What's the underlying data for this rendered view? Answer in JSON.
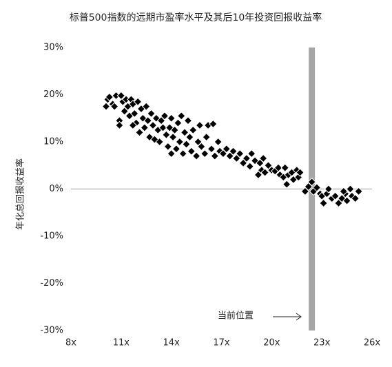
{
  "chart_data": {
    "type": "scatter",
    "title": "标普500指数的远期市盈率水平及其后10年投资回报收益率",
    "y_label": "年化总回报收益率",
    "annotation": "当前位置",
    "current_x": 22.4,
    "color": "#000000",
    "xlim": [
      8,
      26
    ],
    "xticks": [
      {
        "value": 8,
        "label": "8x"
      },
      {
        "value": 11,
        "label": "11x"
      },
      {
        "value": 14,
        "label": "14x"
      },
      {
        "value": 17,
        "label": "17x"
      },
      {
        "value": 20,
        "label": "20x"
      },
      {
        "value": 23,
        "label": "23x"
      },
      {
        "value": 26,
        "label": "26x"
      }
    ],
    "ylim": [
      -30,
      30
    ],
    "yticks": [
      {
        "value": -30,
        "label": "-30%"
      },
      {
        "value": -20,
        "label": "-20%"
      },
      {
        "value": -10,
        "label": "-10%"
      },
      {
        "value": 0,
        "label": "0%"
      },
      {
        "value": 10,
        "label": "10%"
      },
      {
        "value": 20,
        "label": "20%"
      },
      {
        "value": 30,
        "label": "30%"
      }
    ],
    "x": [
      10.1,
      10.2,
      10.3,
      10.5,
      10.7,
      10.6,
      10.9,
      10.9,
      11.0,
      11.1,
      11.2,
      11.3,
      11.4,
      11.5,
      11.6,
      11.7,
      11.8,
      11.9,
      11.7,
      12.0,
      12.1,
      12.2,
      12.3,
      12.4,
      12.5,
      12.6,
      12.7,
      12.8,
      12.9,
      13.0,
      13.1,
      13.2,
      13.3,
      13.4,
      13.5,
      13.6,
      13.7,
      13.8,
      13.9,
      14.0,
      14.0,
      14.1,
      14.2,
      14.3,
      14.4,
      14.5,
      14.6,
      14.7,
      14.8,
      14.9,
      15.0,
      15.1,
      15.2,
      15.3,
      15.5,
      15.6,
      15.7,
      15.8,
      16.0,
      16.1,
      16.2,
      16.4,
      16.5,
      16.6,
      16.8,
      16.9,
      17.1,
      17.3,
      17.5,
      17.7,
      17.9,
      18.1,
      18.3,
      18.5,
      18.7,
      18.8,
      19.0,
      19.2,
      19.3,
      19.4,
      19.5,
      19.6,
      19.8,
      20.0,
      20.2,
      20.4,
      20.5,
      20.7,
      20.8,
      20.9,
      21.0,
      21.2,
      21.3,
      21.5,
      21.6,
      21.7,
      22.0,
      22.2,
      22.4,
      22.5,
      22.7,
      22.9,
      23.0,
      23.1,
      23.3,
      23.4,
      23.6,
      23.8,
      24.0,
      24.2,
      24.4,
      24.5,
      24.7,
      24.8,
      25.0,
      25.2,
      24.3
    ],
    "values": [
      17.5,
      19,
      19.5,
      18,
      19.8,
      17.5,
      14.5,
      13.5,
      19.8,
      18.5,
      16.5,
      19,
      17.5,
      15.5,
      19,
      18,
      16,
      14,
      13.5,
      18.5,
      12,
      17,
      15,
      13,
      17.5,
      14.5,
      11,
      16,
      13.5,
      10.5,
      15,
      12.5,
      10,
      14.5,
      13,
      15.5,
      11.5,
      9,
      13,
      7.5,
      15,
      11,
      12.5,
      8.5,
      14,
      10,
      15.5,
      7.5,
      12,
      9.5,
      14.5,
      11,
      8,
      12.5,
      7,
      10,
      13.5,
      9,
      7.5,
      11,
      13.5,
      8.5,
      13.8,
      7,
      10,
      8,
      7.5,
      8.5,
      7,
      8,
      6.5,
      7.5,
      5.5,
      6.5,
      4.8,
      7.5,
      6,
      3,
      5.5,
      4,
      6.5,
      3.5,
      5,
      4,
      3.8,
      4.5,
      3,
      2.5,
      4.5,
      1,
      3,
      3.5,
      2,
      4,
      2.5,
      3.5,
      -0.5,
      0.5,
      1.5,
      -0.5,
      0.3,
      -1,
      -1.5,
      -3,
      -1,
      0,
      -2,
      -1.5,
      -3,
      -2,
      -1,
      -2.5,
      0,
      -1.5,
      -2,
      -0.5,
      -0.5
    ]
  }
}
